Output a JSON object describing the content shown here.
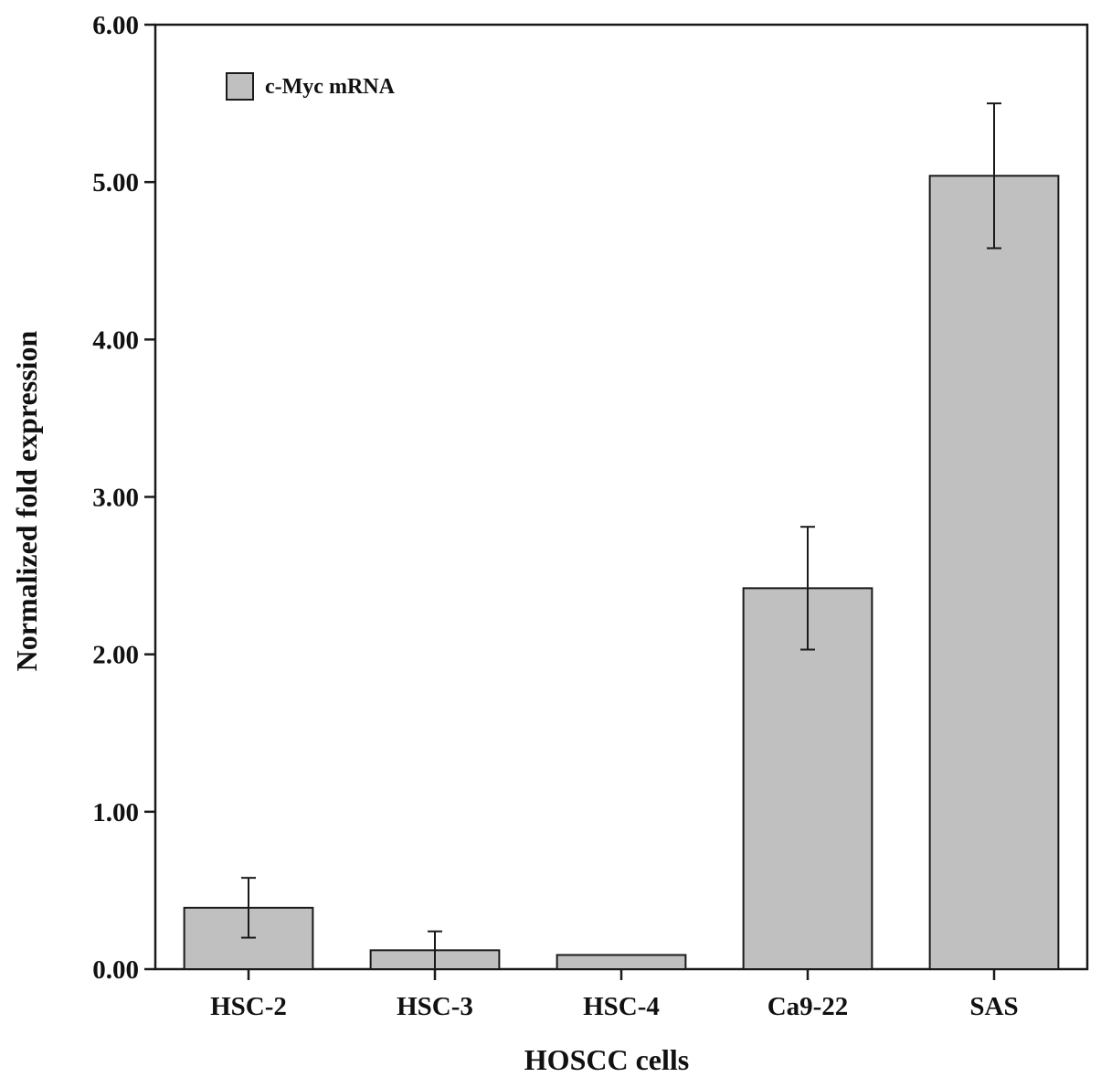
{
  "chart_data": {
    "type": "bar",
    "title": "",
    "xlabel": "HOSCC cells",
    "ylabel": "Normalized fold expression",
    "categories": [
      "HSC-2",
      "HSC-3",
      "HSC-4",
      "Ca9-22",
      "SAS"
    ],
    "series": [
      {
        "name": "c-Myc mRNA",
        "values": [
          0.39,
          0.12,
          0.09,
          2.42,
          5.04
        ],
        "errors": [
          0.19,
          0.12,
          0.0,
          0.39,
          0.46
        ]
      }
    ],
    "ylim": [
      0,
      6
    ],
    "yticks": [
      0,
      1,
      2,
      3,
      4,
      5,
      6
    ],
    "ytick_labels": [
      "0.00",
      "1.00",
      "2.00",
      "3.00",
      "4.00",
      "5.00",
      "6.00"
    ],
    "grid": false,
    "legend_position": "top-left",
    "colors": {
      "bar_fill": "#c0c0c0",
      "bar_stroke": "#1a1a1a",
      "axis": "#1a1a1a"
    }
  }
}
